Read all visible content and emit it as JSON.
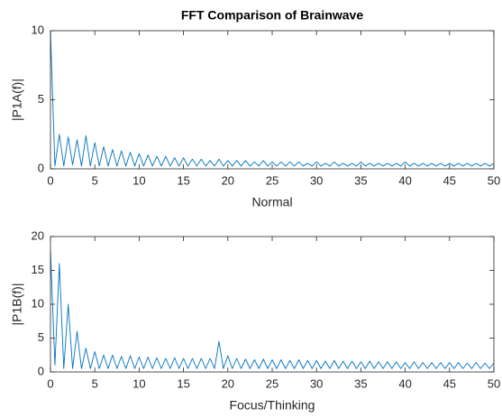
{
  "chart_data": [
    {
      "type": "line",
      "title": "FFT Comparison of Brainwave",
      "xlabel": "Normal",
      "ylabel": "|P1A(f)|",
      "color": "#0072bd",
      "x": [
        0,
        0.5,
        1,
        1.5,
        2,
        2.5,
        3,
        3.5,
        4,
        4.5,
        5,
        5.5,
        6,
        6.5,
        7,
        7.5,
        8,
        8.5,
        9,
        9.5,
        10,
        10.5,
        11,
        11.5,
        12,
        12.5,
        13,
        13.5,
        14,
        14.5,
        15,
        15.5,
        16,
        16.5,
        17,
        17.5,
        18,
        18.5,
        19,
        19.5,
        20,
        20.5,
        21,
        21.5,
        22,
        22.5,
        23,
        23.5,
        24,
        24.5,
        25,
        25.5,
        26,
        26.5,
        27,
        27.5,
        28,
        28.5,
        29,
        29.5,
        30,
        30.5,
        31,
        31.5,
        32,
        32.5,
        33,
        33.5,
        34,
        34.5,
        35,
        35.5,
        36,
        36.5,
        37,
        37.5,
        38,
        38.5,
        39,
        39.5,
        40,
        40.5,
        41,
        41.5,
        42,
        42.5,
        43,
        43.5,
        44,
        44.5,
        45,
        45.5,
        46,
        46.5,
        47,
        47.5,
        48,
        48.5,
        49,
        49.5,
        50
      ],
      "values": [
        10,
        0.2,
        2.5,
        0.2,
        2.3,
        0.3,
        2.1,
        0.2,
        2.4,
        0.2,
        1.9,
        0.2,
        1.6,
        0.2,
        1.4,
        0.2,
        1.3,
        0.2,
        1.2,
        0.2,
        1.1,
        0.2,
        1.0,
        0.2,
        0.9,
        0.2,
        0.9,
        0.2,
        0.8,
        0.2,
        0.8,
        0.2,
        0.7,
        0.2,
        0.7,
        0.2,
        0.6,
        0.2,
        0.7,
        0.2,
        0.6,
        0.2,
        0.6,
        0.2,
        0.6,
        0.2,
        0.5,
        0.2,
        0.6,
        0.2,
        0.5,
        0.2,
        0.5,
        0.2,
        0.5,
        0.2,
        0.5,
        0.2,
        0.4,
        0.2,
        0.5,
        0.2,
        0.4,
        0.2,
        0.5,
        0.2,
        0.4,
        0.2,
        0.4,
        0.2,
        0.5,
        0.2,
        0.4,
        0.2,
        0.4,
        0.2,
        0.4,
        0.2,
        0.4,
        0.2,
        0.5,
        0.2,
        0.4,
        0.2,
        0.4,
        0.2,
        0.4,
        0.2,
        0.4,
        0.2,
        0.4,
        0.2,
        0.4,
        0.2,
        0.4,
        0.2,
        0.4,
        0.2,
        0.4,
        0.2,
        0.4
      ],
      "xlim": [
        0,
        50
      ],
      "xticks": [
        0,
        5,
        10,
        15,
        20,
        25,
        30,
        35,
        40,
        45,
        50
      ],
      "ylim": [
        0,
        10
      ],
      "yticks": [
        0,
        5,
        10
      ]
    },
    {
      "type": "line",
      "xlabel": "Focus/Thinking",
      "ylabel": "|P1B(f)|",
      "color": "#0072bd",
      "x": [
        0,
        0.5,
        1,
        1.5,
        2,
        2.5,
        3,
        3.5,
        4,
        4.5,
        5,
        5.5,
        6,
        6.5,
        7,
        7.5,
        8,
        8.5,
        9,
        9.5,
        10,
        10.5,
        11,
        11.5,
        12,
        12.5,
        13,
        13.5,
        14,
        14.5,
        15,
        15.5,
        16,
        16.5,
        17,
        17.5,
        18,
        18.5,
        19,
        19.5,
        20,
        20.5,
        21,
        21.5,
        22,
        22.5,
        23,
        23.5,
        24,
        24.5,
        25,
        25.5,
        26,
        26.5,
        27,
        27.5,
        28,
        28.5,
        29,
        29.5,
        30,
        30.5,
        31,
        31.5,
        32,
        32.5,
        33,
        33.5,
        34,
        34.5,
        35,
        35.5,
        36,
        36.5,
        37,
        37.5,
        38,
        38.5,
        39,
        39.5,
        40,
        40.5,
        41,
        41.5,
        42,
        42.5,
        43,
        43.5,
        44,
        44.5,
        45,
        45.5,
        46,
        46.5,
        47,
        47.5,
        48,
        48.5,
        49,
        49.5,
        50
      ],
      "values": [
        18,
        1,
        16,
        0.5,
        10,
        0.5,
        6,
        0.5,
        3.5,
        0.5,
        3,
        0.5,
        2.5,
        0.5,
        2.5,
        0.5,
        2.3,
        0.5,
        2.4,
        0.5,
        2.2,
        0.5,
        2.2,
        0.5,
        2.1,
        0.5,
        2,
        0.5,
        2.1,
        0.5,
        2,
        0.5,
        2,
        0.5,
        2,
        0.5,
        2,
        0.5,
        4.5,
        0.5,
        2.4,
        0.5,
        2,
        0.5,
        1.9,
        0.5,
        1.8,
        0.5,
        1.9,
        0.5,
        1.8,
        0.5,
        1.8,
        0.5,
        1.7,
        0.5,
        1.8,
        0.5,
        1.7,
        0.5,
        1.7,
        0.5,
        1.6,
        0.5,
        1.7,
        0.5,
        1.6,
        0.5,
        1.6,
        0.5,
        1.5,
        0.5,
        1.6,
        0.5,
        1.5,
        0.5,
        1.5,
        0.5,
        1.5,
        0.5,
        1.4,
        0.5,
        1.5,
        0.5,
        1.4,
        0.5,
        1.4,
        0.5,
        1.4,
        0.5,
        1.4,
        0.5,
        1.4,
        0.5,
        1.3,
        0.5,
        1.4,
        0.5,
        1.3,
        0.5,
        1.3
      ],
      "xlim": [
        0,
        50
      ],
      "xticks": [
        0,
        5,
        10,
        15,
        20,
        25,
        30,
        35,
        40,
        45,
        50
      ],
      "ylim": [
        0,
        20
      ],
      "yticks": [
        0,
        5,
        10,
        15,
        20
      ]
    }
  ]
}
